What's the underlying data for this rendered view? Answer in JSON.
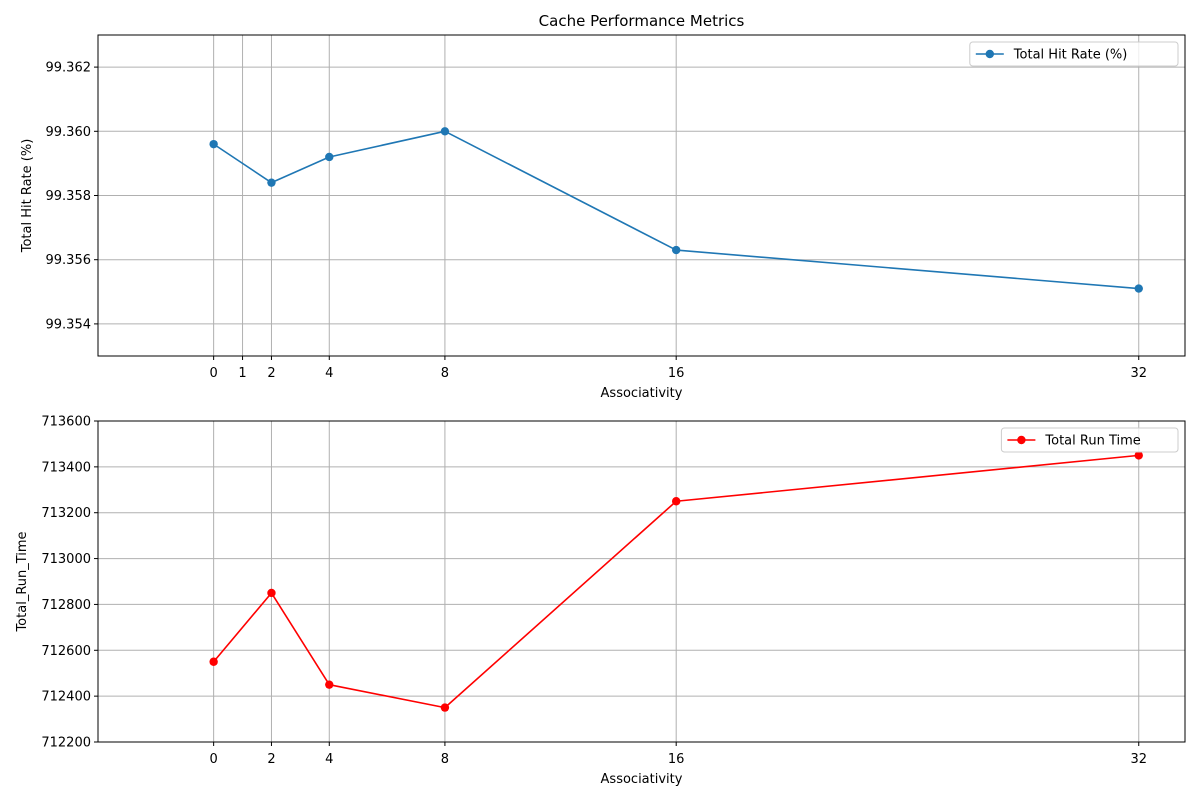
{
  "chart_data": [
    {
      "type": "line",
      "title": "Cache Performance Metrics",
      "xlabel": "Associativity",
      "ylabel": "Total Hit Rate (%)",
      "xlim": [
        -4,
        33.6
      ],
      "ylim": [
        99.353,
        99.363
      ],
      "x_ticks": [
        0,
        1,
        2,
        4,
        8,
        16,
        32
      ],
      "y_ticks": [
        99.354,
        99.356,
        99.358,
        99.36,
        99.362
      ],
      "y_tick_labels": [
        "99.354",
        "99.356",
        "99.358",
        "99.360",
        "99.362"
      ],
      "grid": true,
      "legend_position": "top-right",
      "series": [
        {
          "name": "Total Hit Rate (%)",
          "color": "#1f77b4",
          "marker": "circle",
          "x": [
            0,
            2,
            4,
            8,
            16,
            32
          ],
          "y": [
            99.3596,
            99.3584,
            99.3592,
            99.36,
            99.3563,
            99.3551
          ]
        }
      ]
    },
    {
      "type": "line",
      "title": "",
      "xlabel": "Associativity",
      "ylabel": "Total_Run_Time",
      "xlim": [
        -4,
        33.6
      ],
      "ylim": [
        712200,
        713600
      ],
      "x_ticks": [
        0,
        2,
        4,
        8,
        16,
        32
      ],
      "y_ticks": [
        712200,
        712400,
        712600,
        712800,
        713000,
        713200,
        713400,
        713600
      ],
      "y_tick_labels": [
        "712200",
        "712400",
        "712600",
        "712800",
        "713000",
        "713200",
        "713400",
        "713600"
      ],
      "grid": true,
      "legend_position": "top-right",
      "series": [
        {
          "name": "Total Run Time",
          "color": "#ff0000",
          "marker": "circle",
          "x": [
            0,
            2,
            4,
            8,
            16,
            32
          ],
          "y": [
            712550,
            712850,
            712450,
            712350,
            713250,
            713450
          ]
        }
      ]
    }
  ]
}
